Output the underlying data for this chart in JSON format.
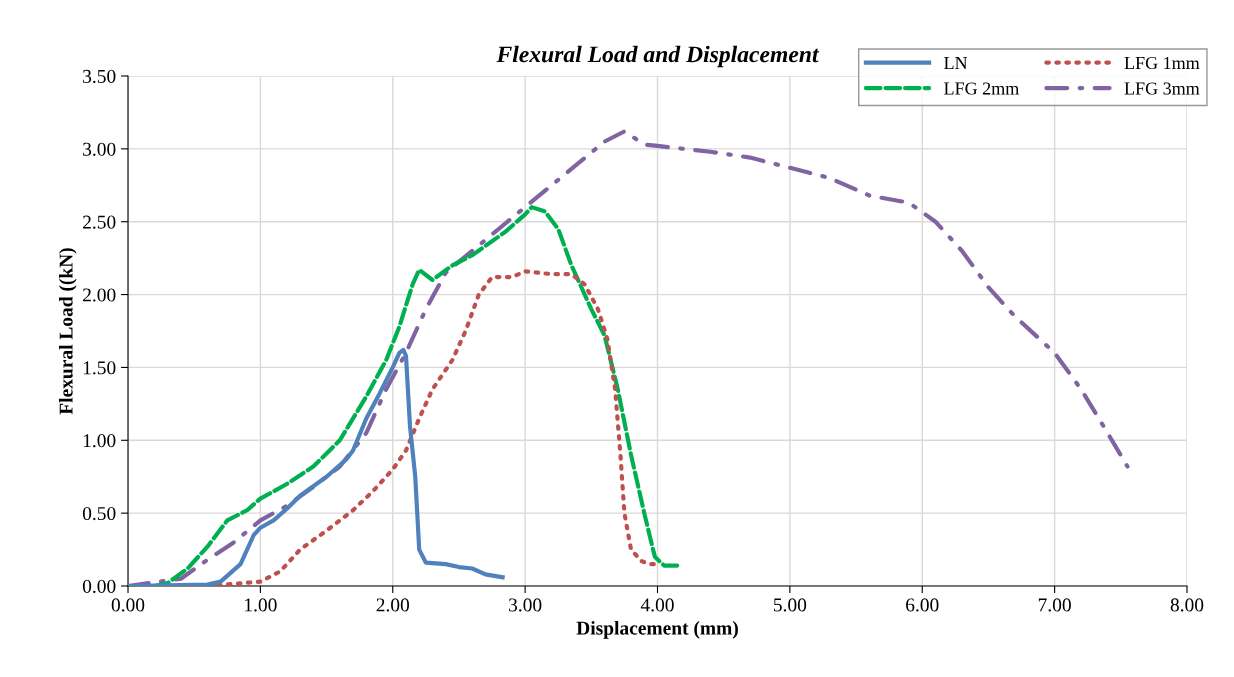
{
  "chart_data": {
    "type": "line",
    "title": "Flexural Load and Displacement",
    "xlabel": "Displacement (mm)",
    "ylabel": "Flexural Load ((kN)",
    "xlim": [
      0,
      8
    ],
    "ylim": [
      0,
      3.5
    ],
    "xticks": [
      {
        "value": 0,
        "label": "0.00"
      },
      {
        "value": 1,
        "label": "1.00"
      },
      {
        "value": 2,
        "label": "2.00"
      },
      {
        "value": 3,
        "label": "3.00"
      },
      {
        "value": 4,
        "label": "4.00"
      },
      {
        "value": 5,
        "label": "5.00"
      },
      {
        "value": 6,
        "label": "6.00"
      },
      {
        "value": 7,
        "label": "7.00"
      },
      {
        "value": 8,
        "label": "8.00"
      }
    ],
    "yticks": [
      {
        "value": 0,
        "label": "0.00"
      },
      {
        "value": 0.5,
        "label": "0.50"
      },
      {
        "value": 1,
        "label": "1.00"
      },
      {
        "value": 1.5,
        "label": "1.50"
      },
      {
        "value": 2,
        "label": "2.00"
      },
      {
        "value": 2.5,
        "label": "2.50"
      },
      {
        "value": 3,
        "label": "3.00"
      },
      {
        "value": 3.5,
        "label": "3.50"
      }
    ],
    "grid": true,
    "legend": "top right",
    "series": [
      {
        "name": "LN",
        "color": "#4f81bd",
        "line_style": "solid",
        "x": [
          0,
          0.6,
          0.7,
          0.85,
          0.95,
          1.0,
          1.1,
          1.2,
          1.3,
          1.5,
          1.65,
          1.7,
          1.8,
          1.9,
          2.0,
          2.05,
          2.08,
          2.1,
          2.13,
          2.17,
          2.2,
          2.25,
          2.4,
          2.5,
          2.6,
          2.7,
          2.83
        ],
        "values": [
          0,
          0.01,
          0.03,
          0.15,
          0.35,
          0.4,
          0.45,
          0.53,
          0.62,
          0.75,
          0.87,
          0.93,
          1.15,
          1.32,
          1.5,
          1.6,
          1.62,
          1.58,
          1.1,
          0.75,
          0.25,
          0.16,
          0.15,
          0.13,
          0.12,
          0.08,
          0.06
        ]
      },
      {
        "name": "LFG 1mm",
        "color": "#c0504d",
        "line_style": "dotted",
        "x": [
          0,
          0.6,
          1.0,
          1.15,
          1.3,
          1.5,
          1.7,
          1.85,
          2.0,
          2.1,
          2.2,
          2.3,
          2.45,
          2.55,
          2.65,
          2.75,
          2.9,
          3.0,
          3.2,
          3.35,
          3.45,
          3.55,
          3.62,
          3.68,
          3.72,
          3.75,
          3.8,
          3.88,
          3.95,
          4.02
        ],
        "values": [
          0,
          0,
          0.03,
          0.1,
          0.25,
          0.38,
          0.52,
          0.65,
          0.8,
          0.93,
          1.15,
          1.35,
          1.55,
          1.75,
          2.0,
          2.12,
          2.12,
          2.16,
          2.14,
          2.14,
          2.07,
          1.9,
          1.7,
          1.35,
          0.9,
          0.5,
          0.25,
          0.17,
          0.15,
          0.15
        ]
      },
      {
        "name": "LFG 2mm",
        "color": "#00b050",
        "line_style": "dashed",
        "x": [
          0.2,
          0.3,
          0.45,
          0.6,
          0.75,
          0.9,
          1.0,
          1.2,
          1.4,
          1.6,
          1.8,
          1.95,
          2.05,
          2.15,
          2.2,
          2.3,
          2.45,
          2.6,
          2.85,
          3.0,
          3.05,
          3.15,
          3.25,
          3.35,
          3.5,
          3.6,
          3.7,
          3.8,
          3.9,
          3.98,
          4.05,
          4.15
        ],
        "values": [
          0,
          0.02,
          0.12,
          0.27,
          0.45,
          0.52,
          0.6,
          0.7,
          0.82,
          1.0,
          1.3,
          1.55,
          1.78,
          2.07,
          2.17,
          2.1,
          2.2,
          2.27,
          2.43,
          2.55,
          2.6,
          2.57,
          2.45,
          2.2,
          1.9,
          1.72,
          1.35,
          0.9,
          0.5,
          0.2,
          0.14,
          0.14
        ]
      },
      {
        "name": "LFG 3mm",
        "color": "#8064a2",
        "line_style": "dashdot",
        "x": [
          0,
          0.4,
          0.6,
          0.8,
          1.0,
          1.2,
          1.4,
          1.6,
          1.8,
          1.95,
          2.1,
          2.25,
          2.4,
          2.6,
          2.8,
          3.0,
          3.2,
          3.4,
          3.6,
          3.75,
          3.9,
          4.0,
          4.4,
          4.7,
          5.0,
          5.3,
          5.6,
          5.9,
          6.1,
          6.3,
          6.5,
          6.7,
          7.0,
          7.2,
          7.4,
          7.55
        ],
        "values": [
          0,
          0.05,
          0.18,
          0.3,
          0.45,
          0.55,
          0.68,
          0.82,
          1.05,
          1.35,
          1.6,
          1.9,
          2.15,
          2.3,
          2.45,
          2.6,
          2.75,
          2.9,
          3.05,
          3.12,
          3.03,
          3.02,
          2.98,
          2.94,
          2.87,
          2.8,
          2.68,
          2.63,
          2.5,
          2.3,
          2.05,
          1.85,
          1.6,
          1.35,
          1.05,
          0.82
        ]
      }
    ]
  }
}
